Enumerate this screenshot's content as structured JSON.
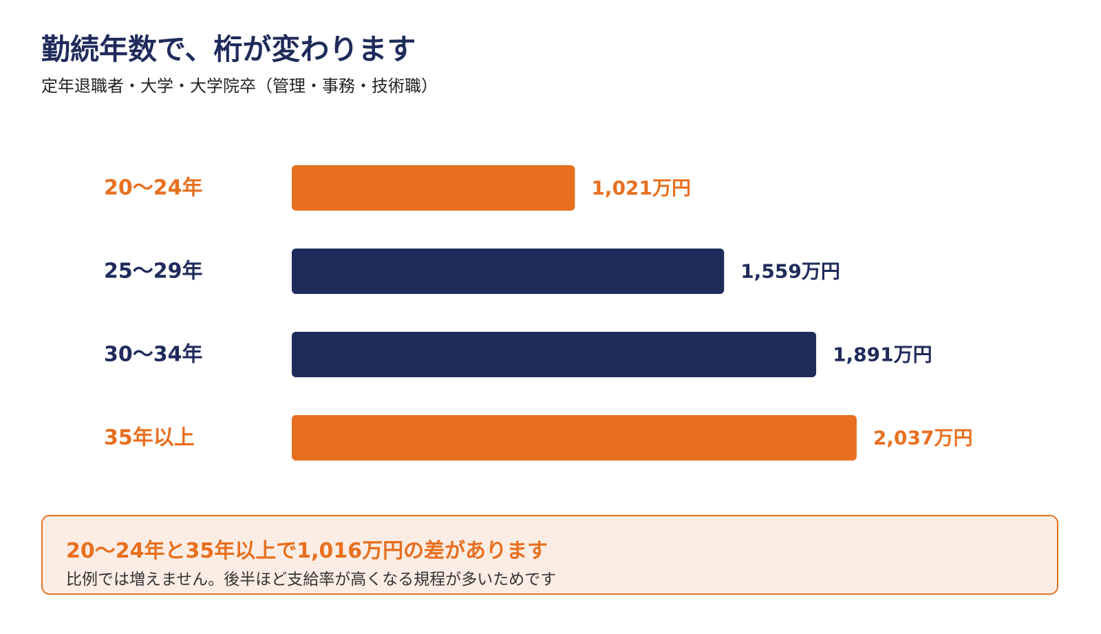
{
  "page": {
    "title": "勤続年数で、桁が変わります",
    "subtitle": "定年退職者・大学・大学院卒（管理・事務・技術職）"
  },
  "chart_data": {
    "type": "bar",
    "orientation": "horizontal",
    "categories": [
      "20〜24年",
      "25〜29年",
      "30〜34年",
      "35年以上"
    ],
    "values": [
      1021,
      1559,
      1891,
      2037
    ],
    "value_labels": [
      "1,021万円",
      "1,559万円",
      "1,891万円",
      "2,037万円"
    ],
    "bar_colors": [
      "#e86f1f",
      "#1f2b5b",
      "#1f2b5b",
      "#e86f1f"
    ],
    "xlim": [
      0,
      2600
    ],
    "grid": false,
    "legend": "none"
  },
  "callout": {
    "heading": "20〜24年と35年以上で1,016万円の差があります",
    "body": "比例では増えません。後半ほど支給率が高くなる規程が多いためです"
  },
  "colors": {
    "accent": "#e86f1f",
    "navy": "#1f2b5b",
    "callout_bg": "#fcede4"
  }
}
